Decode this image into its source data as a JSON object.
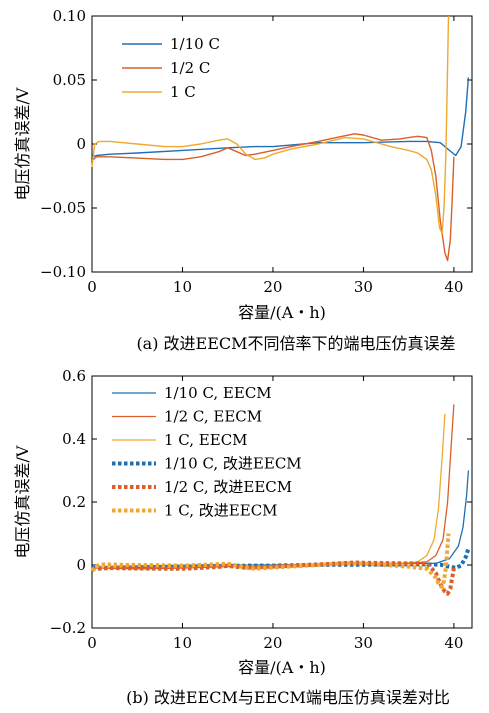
{
  "chart_data": [
    {
      "type": "line",
      "xlabel": "容量/(A・h)",
      "ylabel": "电压仿真误差/V",
      "caption": "(a)  改进EECM不同倍率下的端电压仿真误差",
      "xlim": [
        0,
        42
      ],
      "ylim": [
        -0.1,
        0.1
      ],
      "xticks": [
        0,
        10,
        20,
        30,
        40
      ],
      "yticks": [
        0.1,
        0.05,
        0,
        -0.05,
        -0.1
      ],
      "ytick_labels": [
        "0.10",
        "0.05",
        "0",
        "−0.05",
        "−0.10"
      ],
      "legend_position": "top-left",
      "series": [
        {
          "name": "1/10 C",
          "color": "#1f6fb5",
          "style": "solid",
          "x": [
            0,
            0.5,
            2,
            5,
            10,
            15,
            18,
            20,
            25,
            30,
            35,
            37,
            38.5,
            39.5,
            40.2,
            40.8,
            41.3,
            41.6
          ],
          "y": [
            -0.01,
            -0.009,
            -0.008,
            -0.007,
            -0.005,
            -0.003,
            -0.002,
            -0.002,
            0.001,
            0.001,
            0.002,
            0.002,
            0.001,
            -0.005,
            -0.009,
            -0.002,
            0.025,
            0.052
          ]
        },
        {
          "name": "1/2 C",
          "color": "#d95f2b",
          "style": "solid",
          "x": [
            0,
            0.5,
            2,
            5,
            8,
            10,
            12,
            14,
            15,
            16,
            17,
            18,
            20,
            22,
            25,
            27,
            29,
            30,
            32,
            34,
            35,
            36,
            37,
            37.5,
            38,
            38.5,
            39,
            39.3,
            39.6,
            39.8,
            40
          ],
          "y": [
            -0.013,
            -0.01,
            -0.01,
            -0.011,
            -0.012,
            -0.012,
            -0.01,
            -0.006,
            -0.003,
            -0.006,
            -0.009,
            -0.008,
            -0.005,
            -0.002,
            0.002,
            0.005,
            0.008,
            0.007,
            0.003,
            0.004,
            0.005,
            0.006,
            0.005,
            -0.005,
            -0.025,
            -0.06,
            -0.085,
            -0.091,
            -0.075,
            -0.045,
            -0.01
          ]
        },
        {
          "name": "1 C",
          "color": "#f0a830",
          "style": "solid",
          "x": [
            0,
            0.3,
            0.8,
            2,
            5,
            8,
            10,
            12,
            14,
            15,
            16,
            17,
            18,
            19,
            20,
            22,
            25,
            28,
            30,
            33,
            35,
            36,
            37,
            37.5,
            38,
            38.4,
            38.7,
            38.9,
            39.1,
            39.25,
            39.4
          ],
          "y": [
            -0.018,
            0.0,
            0.002,
            0.002,
            0.0,
            -0.002,
            -0.002,
            0.0,
            0.003,
            0.004,
            0.0,
            -0.008,
            -0.012,
            -0.011,
            -0.008,
            -0.004,
            0.0,
            0.005,
            0.004,
            -0.002,
            -0.005,
            -0.007,
            -0.012,
            -0.02,
            -0.04,
            -0.065,
            -0.07,
            -0.05,
            -0.01,
            0.04,
            0.1
          ]
        }
      ]
    },
    {
      "type": "line",
      "xlabel": "容量/(A・h)",
      "ylabel": "电压仿真误差/V",
      "caption": "(b)  改进EECM与EECM端电压仿真误差对比",
      "xlim": [
        0,
        42
      ],
      "ylim": [
        -0.2,
        0.6
      ],
      "xticks": [
        0,
        10,
        20,
        30,
        40
      ],
      "yticks": [
        0.6,
        0.4,
        0.2,
        0,
        -0.2
      ],
      "ytick_labels": [
        "0.6",
        "0.4",
        "0.2",
        "0",
        "−0.2"
      ],
      "legend_position": "top-left",
      "series": [
        {
          "name": "1/10 C, EECM",
          "color": "#1f6fb5",
          "style": "solid",
          "x": [
            0,
            5,
            10,
            15,
            20,
            25,
            30,
            35,
            38,
            39.5,
            40.5,
            41,
            41.4,
            41.6
          ],
          "y": [
            -0.01,
            -0.008,
            -0.005,
            0.0,
            0.0,
            0.003,
            0.004,
            0.005,
            0.005,
            0.02,
            0.06,
            0.12,
            0.22,
            0.3
          ]
        },
        {
          "name": "1/2 C, EECM",
          "color": "#d95f2b",
          "style": "solid",
          "x": [
            0,
            5,
            10,
            15,
            20,
            25,
            30,
            35,
            37,
            38,
            38.8,
            39.3,
            39.7,
            40.0
          ],
          "y": [
            -0.01,
            -0.012,
            -0.01,
            -0.005,
            -0.003,
            0.002,
            0.006,
            0.005,
            0.01,
            0.03,
            0.08,
            0.2,
            0.38,
            0.51
          ]
        },
        {
          "name": "1 C, EECM",
          "color": "#f0a830",
          "style": "solid",
          "x": [
            0,
            5,
            10,
            15,
            20,
            25,
            30,
            34,
            36,
            37,
            37.8,
            38.3,
            38.7,
            39.0
          ],
          "y": [
            -0.01,
            -0.005,
            -0.003,
            0.003,
            -0.005,
            0.0,
            0.005,
            0.005,
            0.01,
            0.03,
            0.08,
            0.18,
            0.34,
            0.48
          ]
        },
        {
          "name": "1/10 C, 改进EECM",
          "color": "#1f6fb5",
          "style": "dotted",
          "x": [
            0,
            5,
            10,
            15,
            18,
            20,
            25,
            30,
            35,
            37,
            38.5,
            39.5,
            40.2,
            40.8,
            41.3,
            41.6
          ],
          "y": [
            -0.01,
            -0.007,
            -0.005,
            -0.003,
            -0.002,
            -0.002,
            0.001,
            0.001,
            0.002,
            0.002,
            0.001,
            -0.005,
            -0.009,
            -0.002,
            0.025,
            0.052
          ]
        },
        {
          "name": "1/2 C, 改进EECM",
          "color": "#d95f2b",
          "style": "dotted",
          "x": [
            0,
            2,
            5,
            10,
            14,
            15,
            17,
            20,
            25,
            29,
            30,
            35,
            37,
            38,
            38.5,
            39,
            39.3,
            39.6,
            40
          ],
          "y": [
            -0.013,
            -0.01,
            -0.011,
            -0.012,
            -0.006,
            -0.003,
            -0.009,
            -0.005,
            0.002,
            0.008,
            0.007,
            0.005,
            0.005,
            -0.025,
            -0.06,
            -0.085,
            -0.091,
            -0.075,
            -0.01
          ]
        },
        {
          "name": "1 C, 改进EECM",
          "color": "#f0a830",
          "style": "dotted",
          "x": [
            0,
            0.8,
            5,
            10,
            14,
            15,
            17,
            18,
            20,
            25,
            28,
            30,
            35,
            37,
            38,
            38.4,
            38.7,
            38.9,
            39.1,
            39.25,
            39.4
          ],
          "y": [
            -0.018,
            0.002,
            0.0,
            -0.002,
            0.003,
            0.004,
            -0.008,
            -0.012,
            -0.008,
            0.0,
            0.005,
            0.004,
            -0.005,
            -0.012,
            -0.04,
            -0.065,
            -0.07,
            -0.05,
            -0.01,
            0.04,
            0.1
          ]
        }
      ]
    }
  ]
}
